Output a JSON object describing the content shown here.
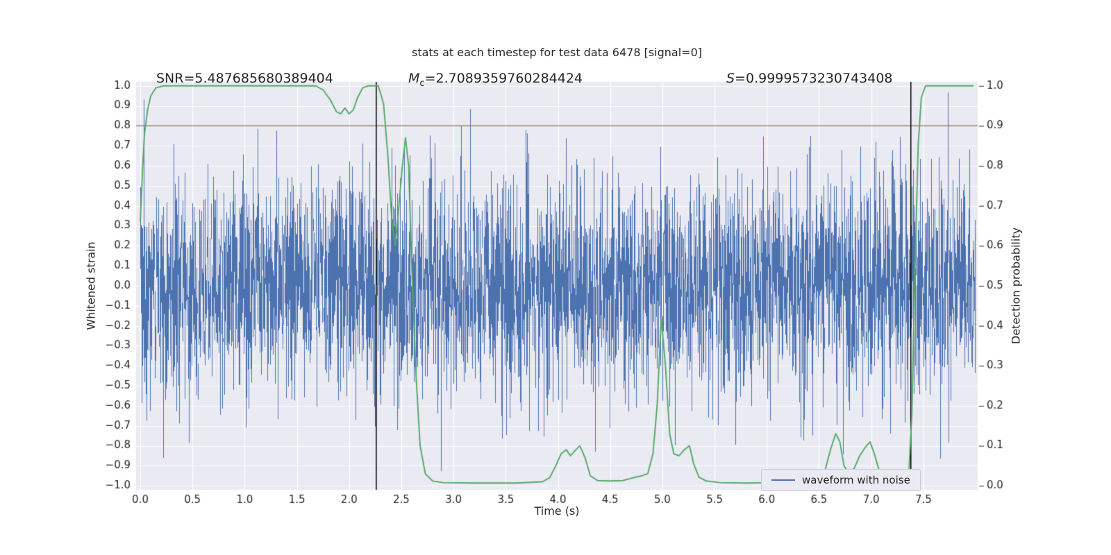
{
  "page": {
    "background": "#ffffff"
  },
  "annotation_display": {
    "snr": "SNR=5.487685680389404",
    "mc_var": "M",
    "mc_sub": "c",
    "mc_eq": "=2.7089359760284424",
    "s_var": "S",
    "s_eq": "=0.9999573230743408"
  },
  "chart_data": {
    "type": "line",
    "title": "stats at each timestep for test data 6478 [signal=0]",
    "xlabel": "Time (s)",
    "ylabel_left": "Whitened strain",
    "ylabel_right": "Detection probability",
    "xlim": [
      -0.04,
      8.02
    ],
    "ylim_left": [
      -1.02,
      1.02
    ],
    "ylim_right": [
      0.0,
      1.0
    ],
    "grid": true,
    "x_tick_values": [
      0.0,
      0.5,
      1.0,
      1.5,
      2.0,
      2.5,
      3.0,
      3.5,
      4.0,
      4.5,
      5.0,
      5.5,
      6.0,
      6.5,
      7.0,
      7.5
    ],
    "x_tick_labels": [
      "0.0",
      "0.5",
      "1.0",
      "1.5",
      "2.0",
      "2.5",
      "3.0",
      "3.5",
      "4.0",
      "4.5",
      "5.0",
      "5.5",
      "6.0",
      "6.5",
      "7.0",
      "7.5"
    ],
    "y_left_tick_values": [
      1.0,
      0.9,
      0.8,
      0.7,
      0.6,
      0.5,
      0.4,
      0.3,
      0.2,
      0.1,
      0.0,
      -0.1,
      -0.2,
      -0.3,
      -0.4,
      -0.5,
      -0.6,
      -0.7,
      -0.8,
      -0.9,
      -1.0
    ],
    "y_left_tick_labels": [
      "1.0",
      "0.9",
      "0.8",
      "0.7",
      "0.6",
      "0.5",
      "0.4",
      "0.3",
      "0.2",
      "0.1",
      "0.0",
      "−0.1",
      "−0.2",
      "−0.3",
      "−0.4",
      "−0.5",
      "−0.6",
      "−0.7",
      "−0.8",
      "−0.9",
      "−1.0"
    ],
    "y_right_tick_values": [
      1.0,
      0.9,
      0.8,
      0.7,
      0.6,
      0.5,
      0.4,
      0.3,
      0.2,
      0.1,
      0.0
    ],
    "y_right_tick_labels": [
      "1.0",
      "0.9",
      "0.8",
      "0.7",
      "0.6",
      "0.5",
      "0.4",
      "0.3",
      "0.2",
      "0.1",
      "0.0"
    ],
    "colors": {
      "axes_bg": "#eaeaf2",
      "grid": "#ffffff",
      "waveform": "#4c72b0",
      "probability": "#55a868",
      "threshold": "#c44e52",
      "vline": "#000000",
      "text": "#262626"
    },
    "threshold_right_axis": 0.9,
    "vlines_x": [
      2.26,
      7.38
    ],
    "annotations": [
      {
        "text": "SNR=5.487685680389404"
      },
      {
        "text": "M_c=2.7089359760284424"
      },
      {
        "text": "S=0.9999573230743408"
      }
    ],
    "series": [
      {
        "name": "waveform with noise",
        "axis": "left",
        "type": "noise",
        "color": "#4c72b0",
        "n_samples": 4096,
        "t_start": 0.0,
        "t_end": 8.0,
        "sigma": 0.27,
        "clip": 0.99,
        "seed": 6478
      },
      {
        "name": "detection probability",
        "axis": "right",
        "type": "line",
        "color": "#55a868",
        "points": [
          [
            0.0,
            0.66
          ],
          [
            0.02,
            0.78
          ],
          [
            0.04,
            0.88
          ],
          [
            0.07,
            0.94
          ],
          [
            0.1,
            0.975
          ],
          [
            0.15,
            0.995
          ],
          [
            0.22,
            1.0
          ],
          [
            1.68,
            1.0
          ],
          [
            1.75,
            0.99
          ],
          [
            1.82,
            0.965
          ],
          [
            1.88,
            0.935
          ],
          [
            1.92,
            0.93
          ],
          [
            1.96,
            0.945
          ],
          [
            2.0,
            0.93
          ],
          [
            2.04,
            0.94
          ],
          [
            2.08,
            0.97
          ],
          [
            2.13,
            0.995
          ],
          [
            2.18,
            1.0
          ],
          [
            2.28,
            1.0
          ],
          [
            2.33,
            0.955
          ],
          [
            2.37,
            0.83
          ],
          [
            2.41,
            0.66
          ],
          [
            2.44,
            0.6
          ],
          [
            2.47,
            0.68
          ],
          [
            2.51,
            0.8
          ],
          [
            2.54,
            0.87
          ],
          [
            2.57,
            0.8
          ],
          [
            2.6,
            0.55
          ],
          [
            2.64,
            0.28
          ],
          [
            2.68,
            0.1
          ],
          [
            2.73,
            0.03
          ],
          [
            2.8,
            0.012
          ],
          [
            2.9,
            0.008
          ],
          [
            3.2,
            0.007
          ],
          [
            3.6,
            0.007
          ],
          [
            3.85,
            0.01
          ],
          [
            3.92,
            0.02
          ],
          [
            3.98,
            0.05
          ],
          [
            4.03,
            0.08
          ],
          [
            4.08,
            0.09
          ],
          [
            4.12,
            0.075
          ],
          [
            4.17,
            0.09
          ],
          [
            4.21,
            0.1
          ],
          [
            4.26,
            0.07
          ],
          [
            4.31,
            0.025
          ],
          [
            4.38,
            0.013
          ],
          [
            4.5,
            0.012
          ],
          [
            4.62,
            0.013
          ],
          [
            4.72,
            0.02
          ],
          [
            4.8,
            0.025
          ],
          [
            4.86,
            0.03
          ],
          [
            4.91,
            0.08
          ],
          [
            4.95,
            0.2
          ],
          [
            4.99,
            0.42
          ],
          [
            5.03,
            0.3
          ],
          [
            5.07,
            0.13
          ],
          [
            5.11,
            0.08
          ],
          [
            5.16,
            0.075
          ],
          [
            5.21,
            0.09
          ],
          [
            5.26,
            0.1
          ],
          [
            5.3,
            0.055
          ],
          [
            5.35,
            0.022
          ],
          [
            5.42,
            0.012
          ],
          [
            5.55,
            0.008
          ],
          [
            5.8,
            0.007
          ],
          [
            6.05,
            0.008
          ],
          [
            6.2,
            0.012
          ],
          [
            6.32,
            0.015
          ],
          [
            6.42,
            0.02
          ],
          [
            6.5,
            0.028
          ],
          [
            6.56,
            0.04
          ],
          [
            6.61,
            0.09
          ],
          [
            6.66,
            0.13
          ],
          [
            6.7,
            0.11
          ],
          [
            6.74,
            0.05
          ],
          [
            6.79,
            0.03
          ],
          [
            6.84,
            0.045
          ],
          [
            6.89,
            0.075
          ],
          [
            6.94,
            0.095
          ],
          [
            6.99,
            0.11
          ],
          [
            7.03,
            0.08
          ],
          [
            7.08,
            0.035
          ],
          [
            7.13,
            0.015
          ],
          [
            7.22,
            0.01
          ],
          [
            7.3,
            0.012
          ],
          [
            7.36,
            0.03
          ],
          [
            7.39,
            0.18
          ],
          [
            7.42,
            0.55
          ],
          [
            7.45,
            0.85
          ],
          [
            7.48,
            0.97
          ],
          [
            7.52,
            1.0
          ],
          [
            7.98,
            1.0
          ]
        ]
      }
    ],
    "legend": {
      "entries": [
        "waveform with noise"
      ],
      "position": "lower right"
    }
  }
}
